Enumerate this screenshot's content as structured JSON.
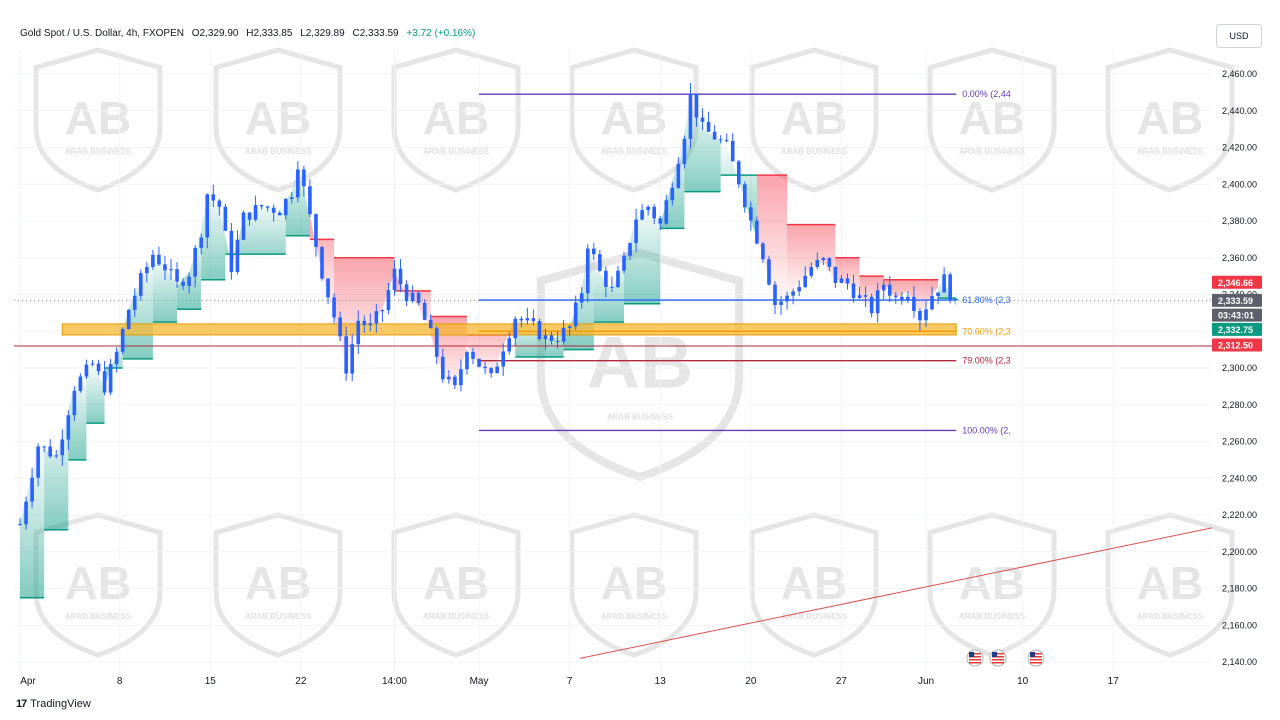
{
  "header": {
    "symbol": "Gold Spot / U.S. Dollar, 4h, FXOPEN",
    "open": "O2,329.90",
    "high": "H2,333.85",
    "low": "L2,329.89",
    "close": "C2,333.59",
    "change": "+3.72 (+0.16%)"
  },
  "currency_button": "USD",
  "brand": {
    "logo": "17",
    "name": "TradingView"
  },
  "watermark": {
    "monogram": "AB",
    "text": "ARAB BUSINESS"
  },
  "colors": {
    "up": "#089981",
    "down": "#f23645",
    "candle": "#2962ff",
    "fib_top": "#673ab7",
    "fib_618": "#2962ff",
    "fib_706": "#f59d00",
    "fib_79": "#b2283b",
    "zone": "#f7b731",
    "trendline": "#d9534f"
  },
  "chart_data": {
    "type": "candlestick",
    "symbol": "XAUUSD",
    "timeframe": "4h",
    "y_axis": {
      "min": 2130,
      "max": 2470,
      "ticks": [
        "2,460.00",
        "2,440.00",
        "2,420.00",
        "2,400.00",
        "2,380.00",
        "2,360.00",
        "2,340.00",
        "2,320.00",
        "2,300.00",
        "2,280.00",
        "2,260.00",
        "2,240.00",
        "2,220.00",
        "2,200.00",
        "2,180.00",
        "2,160.00",
        "2,140.00"
      ],
      "tick_values": [
        2460,
        2440,
        2420,
        2400,
        2380,
        2360,
        2340,
        2320,
        2300,
        2280,
        2260,
        2240,
        2220,
        2200,
        2180,
        2160,
        2140
      ]
    },
    "x_axis": {
      "labels": [
        "Apr",
        "8",
        "15",
        "22",
        "14:00",
        "May",
        "7",
        "13",
        "20",
        "27",
        "Jun",
        "10",
        "17"
      ],
      "label_index": [
        0,
        16.5,
        31.5,
        46.5,
        62,
        76,
        91,
        106,
        121,
        136,
        150,
        166,
        181
      ]
    },
    "price_path": [
      [
        0,
        2215
      ],
      [
        3,
        2258
      ],
      [
        6,
        2252
      ],
      [
        9,
        2290
      ],
      [
        12,
        2302
      ],
      [
        14,
        2290
      ],
      [
        16,
        2308
      ],
      [
        18,
        2332
      ],
      [
        20,
        2348
      ],
      [
        22,
        2362
      ],
      [
        24,
        2355
      ],
      [
        26,
        2345
      ],
      [
        28,
        2352
      ],
      [
        30,
        2375
      ],
      [
        31,
        2395
      ],
      [
        33,
        2388
      ],
      [
        35,
        2355
      ],
      [
        37,
        2382
      ],
      [
        40,
        2388
      ],
      [
        43,
        2386
      ],
      [
        45,
        2396
      ],
      [
        46,
        2412
      ],
      [
        48,
        2382
      ],
      [
        50,
        2352
      ],
      [
        52,
        2328
      ],
      [
        54,
        2300
      ],
      [
        56,
        2326
      ],
      [
        58,
        2322
      ],
      [
        60,
        2332
      ],
      [
        62,
        2352
      ],
      [
        64,
        2340
      ],
      [
        66,
        2334
      ],
      [
        68,
        2318
      ],
      [
        70,
        2296
      ],
      [
        72,
        2288
      ],
      [
        74,
        2312
      ],
      [
        76,
        2302
      ],
      [
        78,
        2294
      ],
      [
        80,
        2312
      ],
      [
        82,
        2328
      ],
      [
        85,
        2322
      ],
      [
        87,
        2316
      ],
      [
        89,
        2317
      ],
      [
        91,
        2322
      ],
      [
        93,
        2342
      ],
      [
        94,
        2368
      ],
      [
        96,
        2352
      ],
      [
        98,
        2342
      ],
      [
        100,
        2358
      ],
      [
        102,
        2382
      ],
      [
        104,
        2388
      ],
      [
        106,
        2378
      ],
      [
        108,
        2402
      ],
      [
        110,
        2428
      ],
      [
        111,
        2448
      ],
      [
        113,
        2430
      ],
      [
        115,
        2426
      ],
      [
        117,
        2420
      ],
      [
        119,
        2402
      ],
      [
        121,
        2380
      ],
      [
        123,
        2362
      ],
      [
        125,
        2335
      ],
      [
        127,
        2338
      ],
      [
        129,
        2346
      ],
      [
        131,
        2355
      ],
      [
        133,
        2358
      ],
      [
        135,
        2348
      ],
      [
        137,
        2346
      ],
      [
        139,
        2338
      ],
      [
        141,
        2332
      ],
      [
        143,
        2346
      ],
      [
        145,
        2338
      ],
      [
        147,
        2342
      ],
      [
        149,
        2328
      ],
      [
        151,
        2340
      ],
      [
        153,
        2348
      ],
      [
        155,
        2333.59
      ]
    ],
    "supertrend": [
      {
        "from": 0,
        "to": 4,
        "side": "up",
        "level": 2175
      },
      {
        "from": 4,
        "to": 8,
        "side": "up",
        "level": 2212
      },
      {
        "from": 8,
        "to": 11,
        "side": "up",
        "level": 2250
      },
      {
        "from": 11,
        "to": 14,
        "side": "up",
        "level": 2270
      },
      {
        "from": 14,
        "to": 17,
        "side": "up",
        "level": 2300
      },
      {
        "from": 17,
        "to": 22,
        "side": "up",
        "level": 2305
      },
      {
        "from": 22,
        "to": 26,
        "side": "up",
        "level": 2325
      },
      {
        "from": 26,
        "to": 30,
        "side": "up",
        "level": 2332
      },
      {
        "from": 30,
        "to": 34,
        "side": "up",
        "level": 2348
      },
      {
        "from": 34,
        "to": 44,
        "side": "up",
        "level": 2362
      },
      {
        "from": 44,
        "to": 48,
        "side": "up",
        "level": 2372
      },
      {
        "from": 48,
        "to": 52,
        "side": "down",
        "level": 2370
      },
      {
        "from": 52,
        "to": 62,
        "side": "down",
        "level": 2360
      },
      {
        "from": 62,
        "to": 68,
        "side": "down",
        "level": 2342
      },
      {
        "from": 68,
        "to": 74,
        "side": "down",
        "level": 2328
      },
      {
        "from": 74,
        "to": 82,
        "side": "down",
        "level": 2318
      },
      {
        "from": 82,
        "to": 90,
        "side": "up",
        "level": 2306
      },
      {
        "from": 90,
        "to": 95,
        "side": "up",
        "level": 2310
      },
      {
        "from": 95,
        "to": 100,
        "side": "up",
        "level": 2325
      },
      {
        "from": 100,
        "to": 106,
        "side": "up",
        "level": 2335
      },
      {
        "from": 106,
        "to": 110,
        "side": "up",
        "level": 2376
      },
      {
        "from": 110,
        "to": 116,
        "side": "up",
        "level": 2396
      },
      {
        "from": 116,
        "to": 122,
        "side": "up",
        "level": 2405
      },
      {
        "from": 122,
        "to": 127,
        "side": "down",
        "level": 2405
      },
      {
        "from": 127,
        "to": 135,
        "side": "down",
        "level": 2378
      },
      {
        "from": 135,
        "to": 139,
        "side": "down",
        "level": 2360
      },
      {
        "from": 139,
        "to": 143,
        "side": "down",
        "level": 2350
      },
      {
        "from": 143,
        "to": 152,
        "side": "down",
        "level": 2348
      },
      {
        "from": 152,
        "to": 155,
        "side": "up",
        "level": 2338
      }
    ],
    "fibonacci": {
      "levels": [
        {
          "label": "0.00% (2,44",
          "price": 2449,
          "color": "#673ab7"
        },
        {
          "label": "61.80% (2,3",
          "price": 2337,
          "color": "#2962ff"
        },
        {
          "label": "70.60% (2,3",
          "price": 2320,
          "color": "#f59d00"
        },
        {
          "label": "79.00% (2,3",
          "price": 2304,
          "color": "#b2283b"
        },
        {
          "label": "100.00% (2,",
          "price": 2266,
          "color": "#673ab7"
        }
      ],
      "x_from": 76,
      "x_to": 155
    },
    "zone": {
      "price_top": 2324,
      "price_bottom": 2318,
      "x_from": 7,
      "x_to": 155
    },
    "horizontal_line": {
      "price": 2312,
      "color": "#b2283b"
    },
    "trendline": {
      "x1": 72,
      "p1": 2130,
      "x2": 200,
      "p2": 2213
    },
    "price_labels": [
      {
        "text": "2,346.66",
        "price": 2346.66,
        "color": "#f23645"
      },
      {
        "text": "2,333.59",
        "price": 2336.8,
        "color": "#5d606b"
      },
      {
        "text": "03:43:01",
        "price": 2328.8,
        "color": "#5d606b"
      },
      {
        "text": "2,332.75",
        "price": 2321,
        "color": "#089981"
      },
      {
        "text": "2,312.50",
        "price": 2312.5,
        "color": "#f23645"
      }
    ]
  }
}
